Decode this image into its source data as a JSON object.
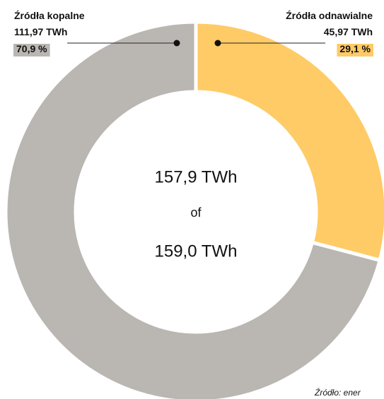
{
  "chart_data": {
    "type": "pie",
    "categories": [
      "Źródła kopalne",
      "Źródła odnawialne"
    ],
    "values": [
      70.9,
      29.1
    ],
    "value_labels": [
      "70,9 %",
      "29,1 %"
    ],
    "amount_labels": [
      "111,97 TWh",
      "45,97 TWh"
    ],
    "colors": [
      "#bab6b2",
      "#ffcb66"
    ],
    "center_labels": [
      "157,9 TWh",
      "of",
      "159,0 TWh"
    ],
    "source": "Źródło: ener"
  }
}
